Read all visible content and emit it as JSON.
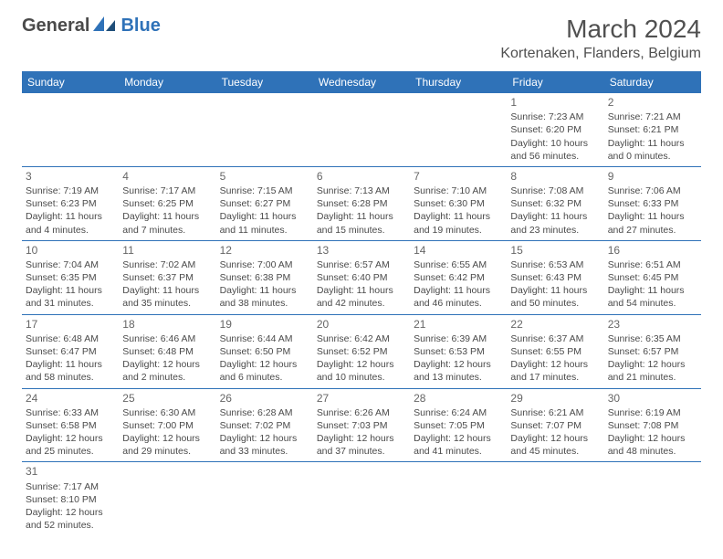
{
  "logo": {
    "general": "General",
    "blue": "Blue"
  },
  "title": "March 2024",
  "location": "Kortenaken, Flanders, Belgium",
  "colors": {
    "header_bg": "#2f72b8",
    "header_fg": "#ffffff",
    "border": "#2f72b8",
    "text": "#4a4a4a"
  },
  "weekdays": [
    "Sunday",
    "Monday",
    "Tuesday",
    "Wednesday",
    "Thursday",
    "Friday",
    "Saturday"
  ],
  "weeks": [
    [
      null,
      null,
      null,
      null,
      null,
      {
        "n": "1",
        "sr": "Sunrise: 7:23 AM",
        "ss": "Sunset: 6:20 PM",
        "dl": "Daylight: 10 hours and 56 minutes."
      },
      {
        "n": "2",
        "sr": "Sunrise: 7:21 AM",
        "ss": "Sunset: 6:21 PM",
        "dl": "Daylight: 11 hours and 0 minutes."
      }
    ],
    [
      {
        "n": "3",
        "sr": "Sunrise: 7:19 AM",
        "ss": "Sunset: 6:23 PM",
        "dl": "Daylight: 11 hours and 4 minutes."
      },
      {
        "n": "4",
        "sr": "Sunrise: 7:17 AM",
        "ss": "Sunset: 6:25 PM",
        "dl": "Daylight: 11 hours and 7 minutes."
      },
      {
        "n": "5",
        "sr": "Sunrise: 7:15 AM",
        "ss": "Sunset: 6:27 PM",
        "dl": "Daylight: 11 hours and 11 minutes."
      },
      {
        "n": "6",
        "sr": "Sunrise: 7:13 AM",
        "ss": "Sunset: 6:28 PM",
        "dl": "Daylight: 11 hours and 15 minutes."
      },
      {
        "n": "7",
        "sr": "Sunrise: 7:10 AM",
        "ss": "Sunset: 6:30 PM",
        "dl": "Daylight: 11 hours and 19 minutes."
      },
      {
        "n": "8",
        "sr": "Sunrise: 7:08 AM",
        "ss": "Sunset: 6:32 PM",
        "dl": "Daylight: 11 hours and 23 minutes."
      },
      {
        "n": "9",
        "sr": "Sunrise: 7:06 AM",
        "ss": "Sunset: 6:33 PM",
        "dl": "Daylight: 11 hours and 27 minutes."
      }
    ],
    [
      {
        "n": "10",
        "sr": "Sunrise: 7:04 AM",
        "ss": "Sunset: 6:35 PM",
        "dl": "Daylight: 11 hours and 31 minutes."
      },
      {
        "n": "11",
        "sr": "Sunrise: 7:02 AM",
        "ss": "Sunset: 6:37 PM",
        "dl": "Daylight: 11 hours and 35 minutes."
      },
      {
        "n": "12",
        "sr": "Sunrise: 7:00 AM",
        "ss": "Sunset: 6:38 PM",
        "dl": "Daylight: 11 hours and 38 minutes."
      },
      {
        "n": "13",
        "sr": "Sunrise: 6:57 AM",
        "ss": "Sunset: 6:40 PM",
        "dl": "Daylight: 11 hours and 42 minutes."
      },
      {
        "n": "14",
        "sr": "Sunrise: 6:55 AM",
        "ss": "Sunset: 6:42 PM",
        "dl": "Daylight: 11 hours and 46 minutes."
      },
      {
        "n": "15",
        "sr": "Sunrise: 6:53 AM",
        "ss": "Sunset: 6:43 PM",
        "dl": "Daylight: 11 hours and 50 minutes."
      },
      {
        "n": "16",
        "sr": "Sunrise: 6:51 AM",
        "ss": "Sunset: 6:45 PM",
        "dl": "Daylight: 11 hours and 54 minutes."
      }
    ],
    [
      {
        "n": "17",
        "sr": "Sunrise: 6:48 AM",
        "ss": "Sunset: 6:47 PM",
        "dl": "Daylight: 11 hours and 58 minutes."
      },
      {
        "n": "18",
        "sr": "Sunrise: 6:46 AM",
        "ss": "Sunset: 6:48 PM",
        "dl": "Daylight: 12 hours and 2 minutes."
      },
      {
        "n": "19",
        "sr": "Sunrise: 6:44 AM",
        "ss": "Sunset: 6:50 PM",
        "dl": "Daylight: 12 hours and 6 minutes."
      },
      {
        "n": "20",
        "sr": "Sunrise: 6:42 AM",
        "ss": "Sunset: 6:52 PM",
        "dl": "Daylight: 12 hours and 10 minutes."
      },
      {
        "n": "21",
        "sr": "Sunrise: 6:39 AM",
        "ss": "Sunset: 6:53 PM",
        "dl": "Daylight: 12 hours and 13 minutes."
      },
      {
        "n": "22",
        "sr": "Sunrise: 6:37 AM",
        "ss": "Sunset: 6:55 PM",
        "dl": "Daylight: 12 hours and 17 minutes."
      },
      {
        "n": "23",
        "sr": "Sunrise: 6:35 AM",
        "ss": "Sunset: 6:57 PM",
        "dl": "Daylight: 12 hours and 21 minutes."
      }
    ],
    [
      {
        "n": "24",
        "sr": "Sunrise: 6:33 AM",
        "ss": "Sunset: 6:58 PM",
        "dl": "Daylight: 12 hours and 25 minutes."
      },
      {
        "n": "25",
        "sr": "Sunrise: 6:30 AM",
        "ss": "Sunset: 7:00 PM",
        "dl": "Daylight: 12 hours and 29 minutes."
      },
      {
        "n": "26",
        "sr": "Sunrise: 6:28 AM",
        "ss": "Sunset: 7:02 PM",
        "dl": "Daylight: 12 hours and 33 minutes."
      },
      {
        "n": "27",
        "sr": "Sunrise: 6:26 AM",
        "ss": "Sunset: 7:03 PM",
        "dl": "Daylight: 12 hours and 37 minutes."
      },
      {
        "n": "28",
        "sr": "Sunrise: 6:24 AM",
        "ss": "Sunset: 7:05 PM",
        "dl": "Daylight: 12 hours and 41 minutes."
      },
      {
        "n": "29",
        "sr": "Sunrise: 6:21 AM",
        "ss": "Sunset: 7:07 PM",
        "dl": "Daylight: 12 hours and 45 minutes."
      },
      {
        "n": "30",
        "sr": "Sunrise: 6:19 AM",
        "ss": "Sunset: 7:08 PM",
        "dl": "Daylight: 12 hours and 48 minutes."
      }
    ],
    [
      {
        "n": "31",
        "sr": "Sunrise: 7:17 AM",
        "ss": "Sunset: 8:10 PM",
        "dl": "Daylight: 12 hours and 52 minutes."
      },
      null,
      null,
      null,
      null,
      null,
      null
    ]
  ]
}
